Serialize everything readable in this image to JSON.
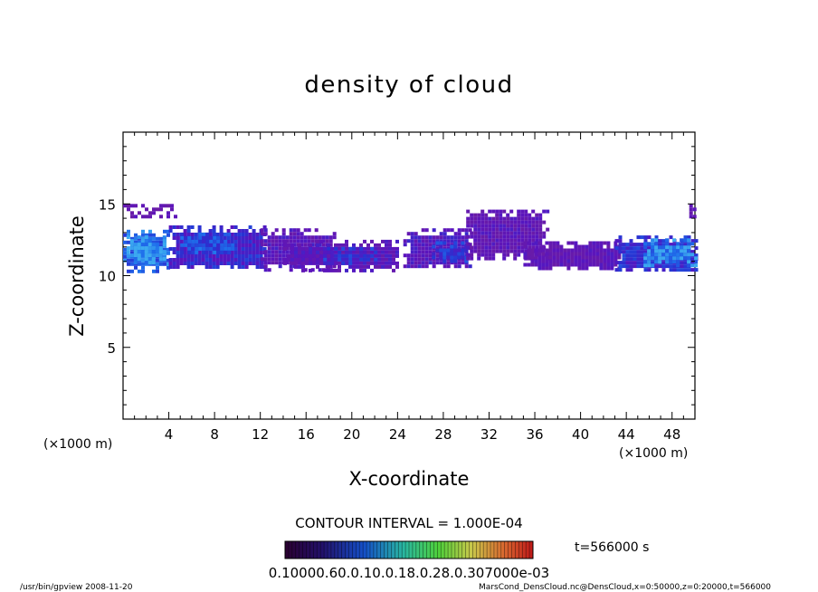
{
  "chart_data": {
    "type": "heatmap",
    "title": "density of cloud",
    "xlabel": "X-coordinate",
    "ylabel": "Z-coordinate",
    "x_unit": "(×1000 m)",
    "xlim": [
      0,
      50
    ],
    "ylim": [
      0,
      20
    ],
    "x_ticks": [
      4,
      8,
      12,
      16,
      20,
      24,
      28,
      32,
      36,
      40,
      44,
      48
    ],
    "y_ticks": [
      5,
      10,
      15
    ],
    "contour_interval": "CONTOUR INTERVAL = 1.000E-04",
    "time_label": "t=566000 s",
    "colorbar_labels": "0.10000.60.0.10.0.18.0.28.0.307000e-03",
    "footer_left": "/usr/bin/gpview  2008-11-20",
    "footer_right": "MarsCond_DensCloud.nc@DensCloud,x=0:50000,z=0:20000,t=566000",
    "cloud_layers": [
      {
        "x0": 0.0,
        "x1": 4.5,
        "z0": 14.2,
        "z1": 15.0,
        "level": 0.2
      },
      {
        "x0": 0.0,
        "x1": 4.0,
        "z0": 10.4,
        "z1": 13.2,
        "level": 0.8
      },
      {
        "x0": 0.3,
        "x1": 3.5,
        "z0": 11.0,
        "z1": 12.8,
        "level": 1.0
      },
      {
        "x0": 4.0,
        "x1": 12.5,
        "z0": 10.5,
        "z1": 13.5,
        "level": 0.5
      },
      {
        "x0": 5.0,
        "x1": 9.5,
        "z0": 11.5,
        "z1": 13.0,
        "level": 0.7
      },
      {
        "x0": 12.0,
        "x1": 18.5,
        "z0": 10.5,
        "z1": 13.3,
        "level": 0.3
      },
      {
        "x0": 14.0,
        "x1": 24.0,
        "z0": 10.4,
        "z1": 12.5,
        "level": 0.3
      },
      {
        "x0": 17.5,
        "x1": 22.0,
        "z0": 10.8,
        "z1": 12.0,
        "level": 0.55
      },
      {
        "x0": 24.5,
        "x1": 30.5,
        "z0": 10.6,
        "z1": 13.3,
        "level": 0.35
      },
      {
        "x0": 27.0,
        "x1": 30.0,
        "z0": 11.0,
        "z1": 12.4,
        "level": 0.6
      },
      {
        "x0": 30.0,
        "x1": 37.0,
        "z0": 11.2,
        "z1": 14.6,
        "level": 0.25
      },
      {
        "x0": 35.0,
        "x1": 43.5,
        "z0": 10.4,
        "z1": 12.4,
        "level": 0.25
      },
      {
        "x0": 43.0,
        "x1": 50.0,
        "z0": 10.3,
        "z1": 12.8,
        "level": 0.55
      },
      {
        "x0": 45.5,
        "x1": 50.0,
        "z0": 10.8,
        "z1": 12.6,
        "level": 0.9
      },
      {
        "x0": 49.5,
        "x1": 50.0,
        "z0": 14.0,
        "z1": 15.0,
        "level": 0.2
      }
    ]
  }
}
